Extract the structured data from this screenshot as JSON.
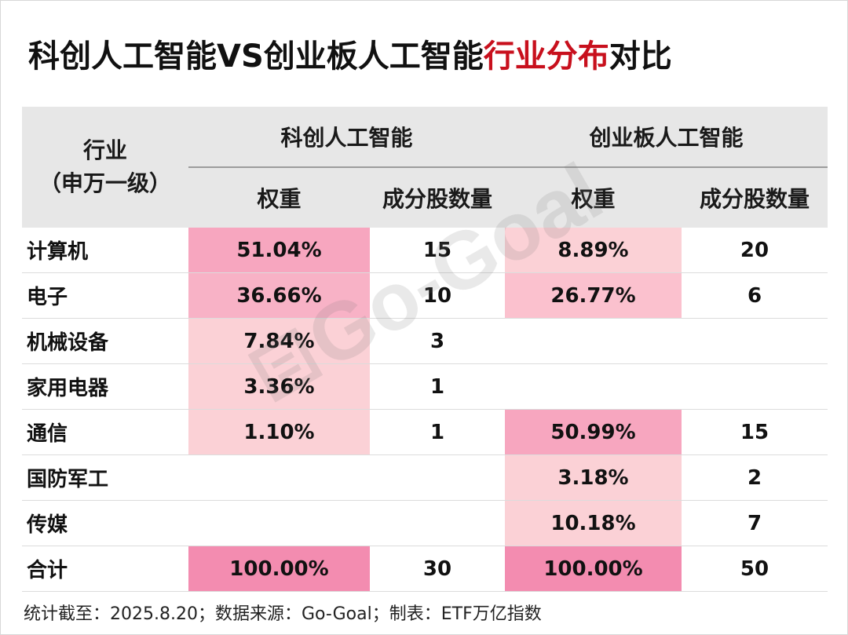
{
  "title": {
    "part1": "科创人工智能VS创业板人工智能",
    "highlight": "行业分布",
    "part2": "对比"
  },
  "watermark": "Go-Goal",
  "table": {
    "row_header_line1": "行业",
    "row_header_line2": "（申万一级）",
    "group_a": "科创人工智能",
    "group_b": "创业板人工智能",
    "col_weight_a": "权重",
    "col_count_a": "成分股数量",
    "col_weight_b": "权重",
    "col_count_b": "成分股数量",
    "rows": [
      {
        "industry": "计算机",
        "a_weight": "51.04%",
        "a_count": "15",
        "b_weight": "8.89%",
        "b_count": "20"
      },
      {
        "industry": "电子",
        "a_weight": "36.66%",
        "a_count": "10",
        "b_weight": "26.77%",
        "b_count": "6"
      },
      {
        "industry": "机械设备",
        "a_weight": "7.84%",
        "a_count": "3",
        "b_weight": "",
        "b_count": ""
      },
      {
        "industry": "家用电器",
        "a_weight": "3.36%",
        "a_count": "1",
        "b_weight": "",
        "b_count": ""
      },
      {
        "industry": "通信",
        "a_weight": "1.10%",
        "a_count": "1",
        "b_weight": "50.99%",
        "b_count": "15"
      },
      {
        "industry": "国防军工",
        "a_weight": "",
        "a_count": "",
        "b_weight": "3.18%",
        "b_count": "2"
      },
      {
        "industry": "传媒",
        "a_weight": "",
        "a_count": "",
        "b_weight": "10.18%",
        "b_count": "7"
      },
      {
        "industry": "合计",
        "a_weight": "100.00%",
        "a_count": "30",
        "b_weight": "100.00%",
        "b_count": "50"
      }
    ]
  },
  "footer": "统计截至：2025.8.20；数据来源：Go-Goal；制表：ETF万亿指数",
  "colors": {
    "title_highlight": "#c8101d",
    "header_bg": "#e7e7e7",
    "heat_strong": "#f38cb0",
    "heat_medium": "#f7a6bf",
    "heat_light": "#fbd1d6"
  }
}
